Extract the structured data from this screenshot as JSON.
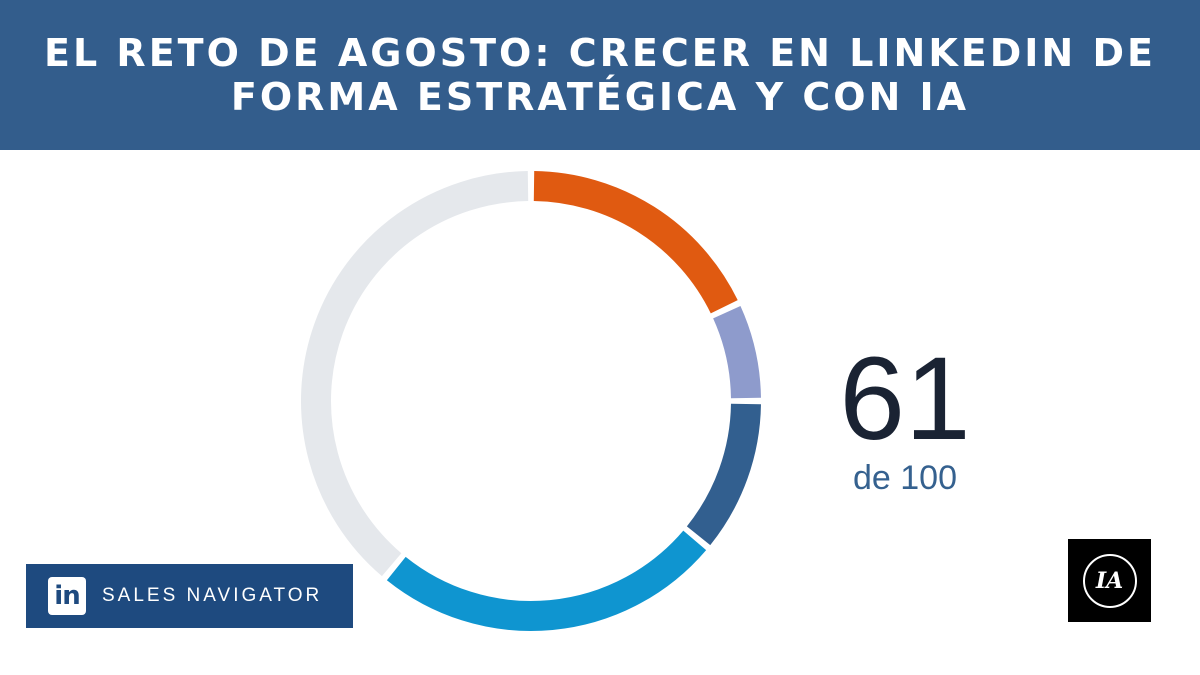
{
  "header": {
    "title": "EL RETO DE AGOSTO: CRECER EN LINKEDIN DE FORMA ESTRATÉGICA Y CON IA"
  },
  "badge": {
    "brand_icon": "linkedin-icon",
    "brand_text": "in",
    "label": "SALES NAVIGATOR"
  },
  "logo": {
    "text": "IA"
  },
  "colors": {
    "header_bg": "#335d8c",
    "score_text": "#1a2333",
    "score_sub": "#35618f",
    "badge_bg": "#1e4a7f"
  },
  "chart_data": {
    "type": "pie",
    "style": "donut",
    "total": 100,
    "score": 61,
    "center_value": "61",
    "center_subtitle": "de 100",
    "start": "top",
    "direction": "clockwise",
    "segments": [
      {
        "value": 18,
        "color": "#e05a11"
      },
      {
        "value": 7,
        "color": "#8e9bcc"
      },
      {
        "value": 11,
        "color": "#325f8f"
      },
      {
        "value": 25,
        "color": "#0f95d0"
      },
      {
        "value": 39,
        "color": "#e5e8ec"
      }
    ]
  }
}
